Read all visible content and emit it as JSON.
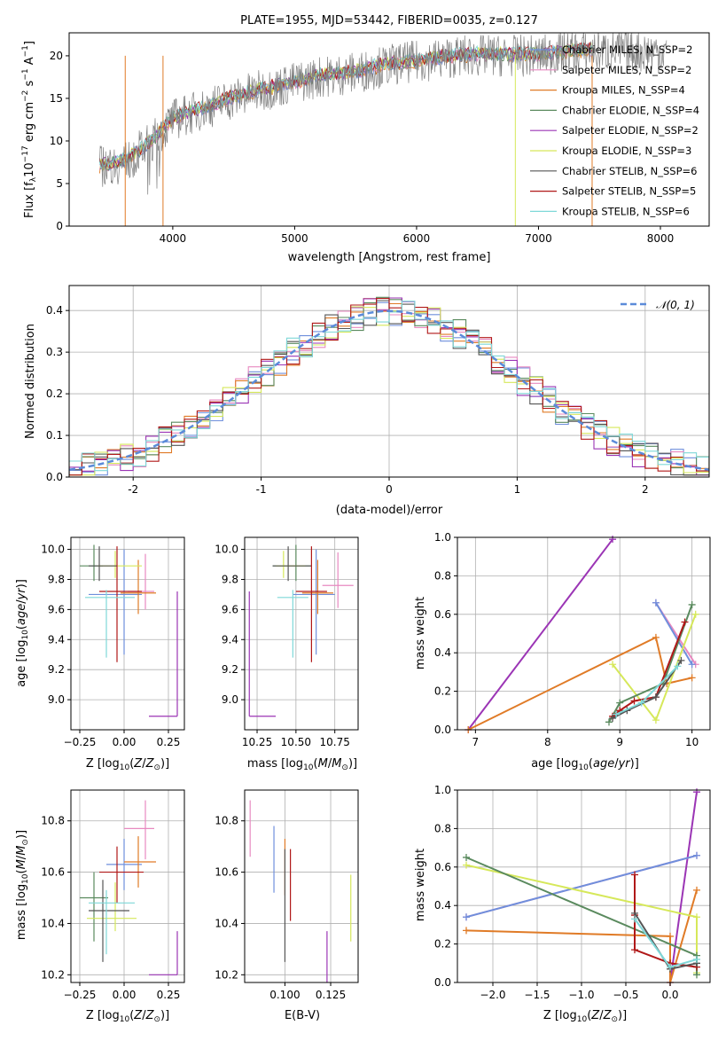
{
  "colors": {
    "chabrier_miles": "#6f8fdc",
    "salpeter_miles": "#e889c0",
    "kroupa_miles": "#e07b27",
    "chabrier_elodie": "#5a8a5e",
    "salpeter_elodie": "#9b35b5",
    "kroupa_elodie": "#d6e85a",
    "chabrier_stelib": "#555555",
    "salpeter_stelib": "#b01818",
    "kroupa_stelib": "#7fd8d8"
  },
  "chart_data": [
    {
      "type": "line",
      "title": "PLATE=1955, MJD=53442, FIBERID=0035, z=0.127",
      "xlabel": "wavelength [Angstrom, rest frame]",
      "ylabel": "Flux [f_λ10^-17 erg cm^-2 s^-1 A^-1]",
      "xlim": [
        3150,
        8400
      ],
      "ylim": [
        0,
        22.7
      ],
      "xticks": [
        4000,
        5000,
        6000,
        7000,
        8000
      ],
      "yticks": [
        0,
        5,
        10,
        15,
        20
      ],
      "legend": "top-right",
      "series": [
        {
          "name": "Chabrier MILES, N_SSP=2",
          "key": "chabrier_miles"
        },
        {
          "name": "Salpeter MILES, N_SSP=2",
          "key": "salpeter_miles"
        },
        {
          "name": "Kroupa MILES, N_SSP=4",
          "key": "kroupa_miles"
        },
        {
          "name": "Chabrier ELODIE, N_SSP=4",
          "key": "chabrier_elodie"
        },
        {
          "name": "Salpeter ELODIE, N_SSP=2",
          "key": "salpeter_elodie"
        },
        {
          "name": "Kroupa ELODIE, N_SSP=3",
          "key": "kroupa_elodie"
        },
        {
          "name": "Chabrier STELIB, N_SSP=6",
          "key": "chabrier_stelib"
        },
        {
          "name": "Salpeter STELIB, N_SSP=5",
          "key": "salpeter_stelib"
        },
        {
          "name": "Kroupa STELIB, N_SSP=6",
          "key": "kroupa_stelib"
        }
      ],
      "observed_envelope": {
        "x": [
          3400,
          3600,
          3800,
          4000,
          4300,
          4600,
          4900,
          5200,
          5500,
          5800,
          6100,
          6400,
          6700,
          7000,
          7300,
          7450
        ],
        "y": [
          7.0,
          7.5,
          9.5,
          12.5,
          14.0,
          15.5,
          16.5,
          17.5,
          18.0,
          19.0,
          19.5,
          20.0,
          20.0,
          20.0,
          20.5,
          20.5
        ]
      }
    },
    {
      "type": "histogram",
      "xlabel": "(data-model)/error",
      "ylabel": "Normed distribution",
      "xlim": [
        -2.5,
        2.5
      ],
      "ylim": [
        0,
        0.46
      ],
      "xticks": [
        -2,
        -1,
        0,
        1,
        2
      ],
      "yticks": [
        0.0,
        0.1,
        0.2,
        0.3,
        0.4
      ],
      "grid": true,
      "legend_label": "N(0,1)",
      "bin_width": 0.1
    },
    {
      "type": "errorbar",
      "xlabel": "Z [log10(Z/Z_sun)]",
      "ylabel": "age [log10(age/yr)]",
      "xlim": [
        -0.3,
        0.34
      ],
      "ylim": [
        8.8,
        10.08
      ],
      "xticks": [
        -0.25,
        0.0,
        0.25
      ],
      "yticks": [
        9.0,
        9.2,
        9.4,
        9.6,
        9.8,
        10.0
      ],
      "points": [
        {
          "key": "chabrier_miles",
          "x": 0.0,
          "xerr": [
            0.2,
            0.1
          ],
          "y": 9.7,
          "yerr": [
            0.4,
            0.3
          ]
        },
        {
          "key": "salpeter_miles",
          "x": 0.12,
          "xerr": [
            0.1,
            0.05
          ],
          "y": 9.72,
          "yerr": [
            0.12,
            0.25
          ]
        },
        {
          "key": "kroupa_miles",
          "x": 0.08,
          "xerr": [
            0.1,
            0.1
          ],
          "y": 9.71,
          "yerr": [
            0.14,
            0.22
          ]
        },
        {
          "key": "chabrier_elodie",
          "x": -0.17,
          "xerr": [
            0.08,
            0.05
          ],
          "y": 9.89,
          "yerr": [
            0.1,
            0.14
          ]
        },
        {
          "key": "salpeter_elodie",
          "x": 0.3,
          "xerr": [
            0.16,
            0.0
          ],
          "y": 8.89,
          "yerr": [
            0.0,
            0.83
          ]
        },
        {
          "key": "kroupa_elodie",
          "x": -0.05,
          "xerr": [
            0.1,
            0.15
          ],
          "y": 9.89,
          "yerr": [
            0.08,
            0.1
          ]
        },
        {
          "key": "chabrier_stelib",
          "x": -0.14,
          "xerr": [
            0.06,
            0.1
          ],
          "y": 9.89,
          "yerr": [
            0.1,
            0.13
          ]
        },
        {
          "key": "salpeter_stelib",
          "x": -0.04,
          "xerr": [
            0.1,
            0.14
          ],
          "y": 9.72,
          "yerr": [
            0.47,
            0.3
          ]
        },
        {
          "key": "kroupa_stelib",
          "x": -0.1,
          "xerr": [
            0.12,
            0.16
          ],
          "y": 9.68,
          "yerr": [
            0.4,
            0.05
          ]
        }
      ]
    },
    {
      "type": "errorbar",
      "xlabel": "mass [log10(M/M_sun)]",
      "ylabel": "",
      "xlim": [
        10.17,
        10.9
      ],
      "ylim": [
        8.8,
        10.08
      ],
      "xticks": [
        10.25,
        10.5,
        10.75
      ],
      "yticks": [
        9.0,
        9.2,
        9.4,
        9.6,
        9.8,
        10.0
      ],
      "points": [
        {
          "key": "chabrier_miles",
          "x": 10.63,
          "xerr": [
            0.15,
            0.12
          ],
          "y": 9.7,
          "yerr": [
            0.4,
            0.3
          ]
        },
        {
          "key": "salpeter_miles",
          "x": 10.77,
          "xerr": [
            0.1,
            0.1
          ],
          "y": 9.76,
          "yerr": [
            0.15,
            0.22
          ]
        },
        {
          "key": "kroupa_miles",
          "x": 10.64,
          "xerr": [
            0.1,
            0.1
          ],
          "y": 9.71,
          "yerr": [
            0.14,
            0.22
          ]
        },
        {
          "key": "chabrier_elodie",
          "x": 10.5,
          "xerr": [
            0.15,
            0.1
          ],
          "y": 9.89,
          "yerr": [
            0.1,
            0.14
          ]
        },
        {
          "key": "salpeter_elodie",
          "x": 10.2,
          "xerr": [
            0.0,
            0.17
          ],
          "y": 8.89,
          "yerr": [
            0.0,
            0.83
          ]
        },
        {
          "key": "kroupa_elodie",
          "x": 10.42,
          "xerr": [
            0.05,
            0.14
          ],
          "y": 9.89,
          "yerr": [
            0.08,
            0.1
          ]
        },
        {
          "key": "chabrier_stelib",
          "x": 10.45,
          "xerr": [
            0.1,
            0.15
          ],
          "y": 9.89,
          "yerr": [
            0.1,
            0.13
          ]
        },
        {
          "key": "salpeter_stelib",
          "x": 10.6,
          "xerr": [
            0.1,
            0.1
          ],
          "y": 9.72,
          "yerr": [
            0.47,
            0.3
          ]
        },
        {
          "key": "kroupa_stelib",
          "x": 10.48,
          "xerr": [
            0.1,
            0.1
          ],
          "y": 9.68,
          "yerr": [
            0.4,
            0.05
          ]
        }
      ]
    },
    {
      "type": "line",
      "xlabel": "age [log10(age/yr)]",
      "ylabel": "mass weight",
      "xlim": [
        6.75,
        10.25
      ],
      "ylim": [
        0.0,
        1.0
      ],
      "xticks": [
        7,
        8,
        9,
        10
      ],
      "yticks": [
        0.0,
        0.2,
        0.4,
        0.6,
        0.8,
        1.0
      ],
      "grid": true,
      "series": [
        {
          "key": "salpeter_elodie",
          "x": [
            6.9,
            8.9
          ],
          "y": [
            0.0,
            0.99
          ]
        },
        {
          "key": "kroupa_miles",
          "x": [
            6.9,
            9.5,
            9.65,
            10.0
          ],
          "y": [
            0.0,
            0.48,
            0.24,
            0.27
          ]
        },
        {
          "key": "salpeter_miles",
          "x": [
            9.5,
            10.05
          ],
          "y": [
            0.66,
            0.34
          ]
        },
        {
          "key": "chabrier_miles",
          "x": [
            9.5,
            10.0
          ],
          "y": [
            0.66,
            0.34
          ]
        },
        {
          "key": "kroupa_elodie",
          "x": [
            8.9,
            9.5,
            10.05
          ],
          "y": [
            0.34,
            0.05,
            0.6
          ]
        },
        {
          "key": "chabrier_elodie",
          "x": [
            8.85,
            9.0,
            9.6,
            10.0
          ],
          "y": [
            0.04,
            0.14,
            0.24,
            0.65
          ]
        },
        {
          "key": "salpeter_stelib",
          "x": [
            8.9,
            9.0,
            9.2,
            9.5,
            9.9
          ],
          "y": [
            0.07,
            0.1,
            0.15,
            0.17,
            0.56
          ]
        },
        {
          "key": "chabrier_stelib",
          "x": [
            8.9,
            9.1,
            9.5,
            9.85
          ],
          "y": [
            0.06,
            0.1,
            0.17,
            0.36
          ]
        },
        {
          "key": "kroupa_stelib",
          "x": [
            8.95,
            9.3,
            9.8
          ],
          "y": [
            0.08,
            0.14,
            0.33
          ]
        }
      ]
    },
    {
      "type": "errorbar",
      "xlabel": "Z [log10(Z/Z_sun)]",
      "ylabel": "mass [log10(M/M_sun)]",
      "xlim": [
        -0.3,
        0.34
      ],
      "ylim": [
        10.17,
        10.92
      ],
      "xticks": [
        -0.25,
        0.0,
        0.25
      ],
      "yticks": [
        10.2,
        10.4,
        10.6,
        10.8
      ],
      "points": [
        {
          "key": "chabrier_miles",
          "x": 0.0,
          "xerr": [
            0.1,
            0.1
          ],
          "y": 10.63,
          "yerr": [
            0.1,
            0.1
          ]
        },
        {
          "key": "salpeter_miles",
          "x": 0.12,
          "xerr": [
            0.12,
            0.05
          ],
          "y": 10.77,
          "yerr": [
            0.12,
            0.11
          ]
        },
        {
          "key": "kroupa_miles",
          "x": 0.08,
          "xerr": [
            0.08,
            0.1
          ],
          "y": 10.64,
          "yerr": [
            0.1,
            0.1
          ]
        },
        {
          "key": "chabrier_elodie",
          "x": -0.17,
          "xerr": [
            0.08,
            0.08
          ],
          "y": 10.5,
          "yerr": [
            0.17,
            0.1
          ]
        },
        {
          "key": "salpeter_elodie",
          "x": 0.3,
          "xerr": [
            0.16,
            0.0
          ],
          "y": 10.2,
          "yerr": [
            0.0,
            0.17
          ]
        },
        {
          "key": "kroupa_elodie",
          "x": -0.05,
          "xerr": [
            0.16,
            0.12
          ],
          "y": 10.42,
          "yerr": [
            0.05,
            0.14
          ]
        },
        {
          "key": "chabrier_stelib",
          "x": -0.12,
          "xerr": [
            0.08,
            0.15
          ],
          "y": 10.45,
          "yerr": [
            0.2,
            0.12
          ]
        },
        {
          "key": "salpeter_stelib",
          "x": -0.04,
          "xerr": [
            0.1,
            0.15
          ],
          "y": 10.6,
          "yerr": [
            0.12,
            0.1
          ]
        },
        {
          "key": "kroupa_stelib",
          "x": -0.1,
          "xerr": [
            0.1,
            0.16
          ],
          "y": 10.48,
          "yerr": [
            0.2,
            0.05
          ]
        }
      ]
    },
    {
      "type": "errorbar",
      "xlabel": "E(B-V)",
      "ylabel": "",
      "xlim": [
        0.078,
        0.14
      ],
      "ylim": [
        10.17,
        10.92
      ],
      "xticks": [
        0.1,
        0.125
      ],
      "yticks": [
        10.2,
        10.4,
        10.6,
        10.8
      ],
      "points": [
        {
          "key": "salpeter_miles",
          "x": 0.081,
          "y": 10.77,
          "yerr": [
            0.11,
            0.11
          ]
        },
        {
          "key": "chabrier_miles",
          "x": 0.094,
          "y": 10.65,
          "yerr": [
            0.13,
            0.13
          ]
        },
        {
          "key": "kroupa_miles",
          "x": 0.1,
          "y": 10.62,
          "yerr": [
            0.11,
            0.11
          ]
        },
        {
          "key": "chabrier_stelib",
          "x": 0.1,
          "y": 10.47,
          "yerr": [
            0.22,
            0.22
          ]
        },
        {
          "key": "salpeter_stelib",
          "x": 0.103,
          "y": 10.55,
          "yerr": [
            0.14,
            0.14
          ]
        },
        {
          "key": "salpeter_elodie",
          "x": 0.123,
          "y": 10.27,
          "yerr": [
            0.1,
            0.1
          ]
        },
        {
          "key": "kroupa_elodie",
          "x": 0.136,
          "y": 10.46,
          "yerr": [
            0.13,
            0.13
          ]
        }
      ]
    },
    {
      "type": "line",
      "xlabel": "Z [log10(Z/Z_sun)]",
      "ylabel": "mass weight",
      "xlim": [
        -2.4,
        0.45
      ],
      "ylim": [
        0.0,
        1.0
      ],
      "xticks": [
        -2.0,
        -1.5,
        -1.0,
        -0.5,
        0.0
      ],
      "yticks": [
        0.0,
        0.2,
        0.4,
        0.6,
        0.8,
        1.0
      ],
      "grid": true,
      "series": [
        {
          "key": "salpeter_elodie",
          "x": [
            0.0,
            0.3
          ],
          "y": [
            0.0,
            0.99
          ]
        },
        {
          "key": "kroupa_miles",
          "x": [
            -2.3,
            0.0,
            0.0,
            0.3
          ],
          "y": [
            0.27,
            0.24,
            0.0,
            0.48
          ]
        },
        {
          "key": "salpeter_miles",
          "x": [
            -2.3,
            0.3
          ],
          "y": [
            0.34,
            0.66
          ]
        },
        {
          "key": "chabrier_miles",
          "x": [
            -2.3,
            0.3
          ],
          "y": [
            0.34,
            0.66
          ]
        },
        {
          "key": "kroupa_elodie",
          "x": [
            -2.3,
            0.3,
            0.3
          ],
          "y": [
            0.61,
            0.34,
            0.05
          ]
        },
        {
          "key": "chabrier_elodie",
          "x": [
            -2.3,
            0.3,
            0.3
          ],
          "y": [
            0.65,
            0.14,
            0.04
          ]
        },
        {
          "key": "salpeter_stelib",
          "x": [
            -0.4,
            -0.4,
            -0.4,
            0.0,
            0.3
          ],
          "y": [
            0.56,
            0.35,
            0.17,
            0.1,
            0.08
          ]
        },
        {
          "key": "chabrier_stelib",
          "x": [
            -0.4,
            0.0,
            0.3
          ],
          "y": [
            0.36,
            0.07,
            0.1
          ]
        },
        {
          "key": "kroupa_stelib",
          "x": [
            -0.4,
            0.0,
            0.3
          ],
          "y": [
            0.33,
            0.08,
            0.12
          ]
        }
      ]
    }
  ]
}
